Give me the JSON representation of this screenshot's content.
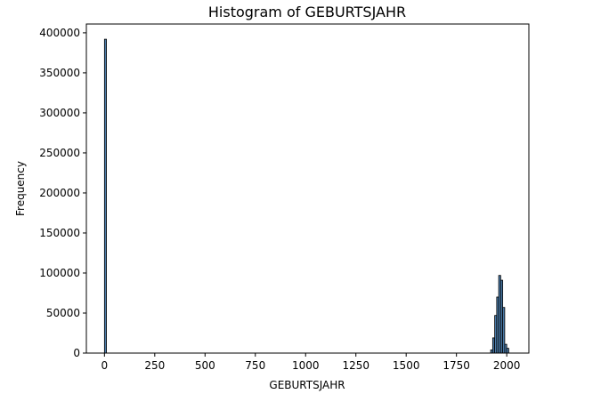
{
  "chart_data": {
    "type": "bar",
    "title": "Histogram of GEBURTSJAHR",
    "xlabel": "GEBURTSJAHR",
    "ylabel": "Frequency",
    "xlim": [
      -90,
      2110
    ],
    "ylim": [
      0,
      411000
    ],
    "x_ticks": [
      0,
      250,
      500,
      750,
      1000,
      1250,
      1500,
      1750,
      2000
    ],
    "y_ticks": [
      0,
      50000,
      100000,
      150000,
      200000,
      250000,
      300000,
      350000,
      400000
    ],
    "bin_width": 10,
    "bar_color": "#4a7aa8",
    "edge_color": "#000000",
    "bins": [
      {
        "x": 0,
        "value": 392000
      },
      {
        "x": 1920,
        "value": 4000
      },
      {
        "x": 1930,
        "value": 19000
      },
      {
        "x": 1940,
        "value": 47000
      },
      {
        "x": 1950,
        "value": 70000
      },
      {
        "x": 1960,
        "value": 97000
      },
      {
        "x": 1970,
        "value": 91000
      },
      {
        "x": 1980,
        "value": 57000
      },
      {
        "x": 1990,
        "value": 11000
      },
      {
        "x": 2000,
        "value": 6000
      }
    ]
  }
}
